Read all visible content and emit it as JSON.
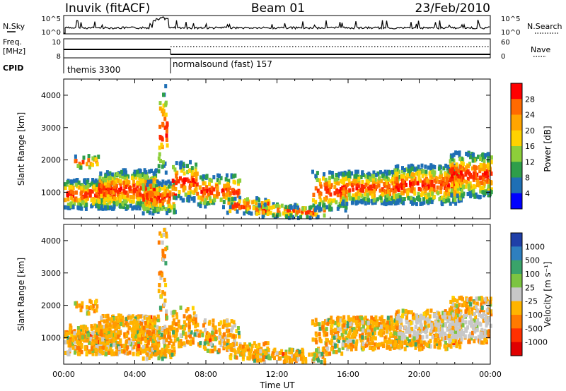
{
  "header": {
    "station": "Inuvik (fitACF)",
    "beam": "Beam 01",
    "date": "23/Feb/2010"
  },
  "status_panels": {
    "nsky_label": "N.Sky",
    "nsky_ticks": [
      "10^5",
      "10^0"
    ],
    "nsearch_label": "N.Search",
    "nsearch_ticks": [
      "10^5",
      "10^0"
    ],
    "freq_label_line1": "Freq.",
    "freq_label_line2": "[MHz]",
    "freq_ticks": [
      "10",
      "8"
    ],
    "nave_label": "Nave",
    "nave_ticks": [
      "60",
      "0"
    ],
    "cpid_label": "CPID",
    "cpid_segments": [
      {
        "label": "themis 3300",
        "start_hour": 0,
        "end_hour": 6
      },
      {
        "label": "normalsound (fast) 157",
        "start_hour": 6,
        "end_hour": 24
      }
    ]
  },
  "x_axis": {
    "label": "Time UT",
    "ticks": [
      "00:00",
      "04:00",
      "08:00",
      "12:00",
      "16:00",
      "20:00",
      "00:00"
    ],
    "range_hours": [
      0,
      24
    ]
  },
  "chart_data": [
    {
      "type": "heatmap",
      "panel": "power",
      "ylabel": "Slant Range [km]",
      "y_ticks": [
        "1000",
        "2000",
        "3000",
        "4000"
      ],
      "ylim": [
        180,
        4500
      ],
      "colorbar_label": "Power [dB]",
      "colorbar_ticks": [
        "28",
        "24",
        "20",
        "16",
        "12",
        "8",
        "4"
      ],
      "colorbar_colors": [
        "#ff0000",
        "#ff6a00",
        "#ffa500",
        "#ffd200",
        "#8dcf3a",
        "#2e9e4a",
        "#1f6fb5",
        "#0000ff"
      ],
      "grid": false
    },
    {
      "type": "heatmap",
      "panel": "velocity",
      "ylabel": "Slant Range [km]",
      "y_ticks": [
        "1000",
        "2000",
        "3000",
        "4000"
      ],
      "ylim": [
        180,
        4500
      ],
      "colorbar_label": "Velocity [m s⁻¹]",
      "colorbar_ticks": [
        "1000",
        "500",
        "100",
        "25",
        "-25",
        "-100",
        "-500",
        "-1000"
      ],
      "colorbar_colors": [
        "#1f3fa8",
        "#2e7fbf",
        "#3aa36a",
        "#7cc441",
        "#c8c8c8",
        "#ffb400",
        "#ff7a00",
        "#ff3000",
        "#e00000"
      ],
      "grid": false
    }
  ]
}
